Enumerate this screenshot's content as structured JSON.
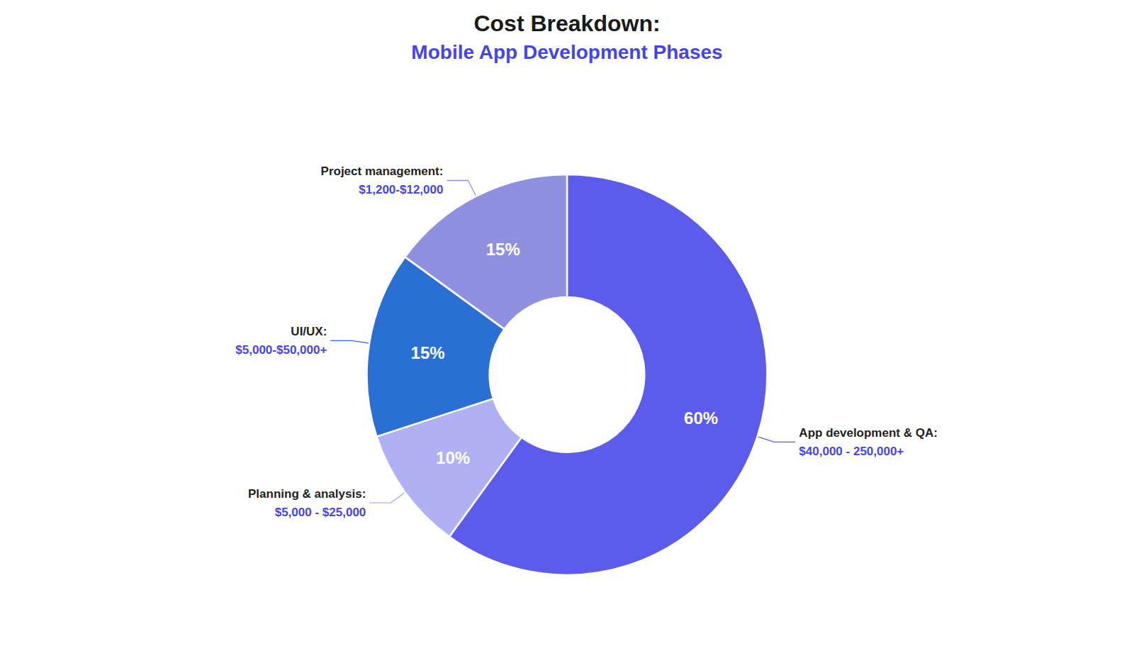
{
  "chart_data": {
    "type": "pie",
    "title": "Cost Breakdown:",
    "subtitle": "Mobile App Development Phases",
    "categories": [
      "App development & QA:",
      "Planning & analysis:",
      "UI/UX:",
      "Project management:"
    ],
    "values": [
      60,
      10,
      15,
      15
    ],
    "value_labels": [
      "60%",
      "10%",
      "15%",
      "15%"
    ],
    "annotations": [
      "$40,000 - 250,000+",
      "$5,000 - $25,000",
      "$5,000-$50,000+",
      "$1,200-$12,000"
    ],
    "colors": [
      "#5b5bec",
      "#b0b0f5",
      "#2a6fd4",
      "#9090e0"
    ],
    "data_labels": true
  }
}
